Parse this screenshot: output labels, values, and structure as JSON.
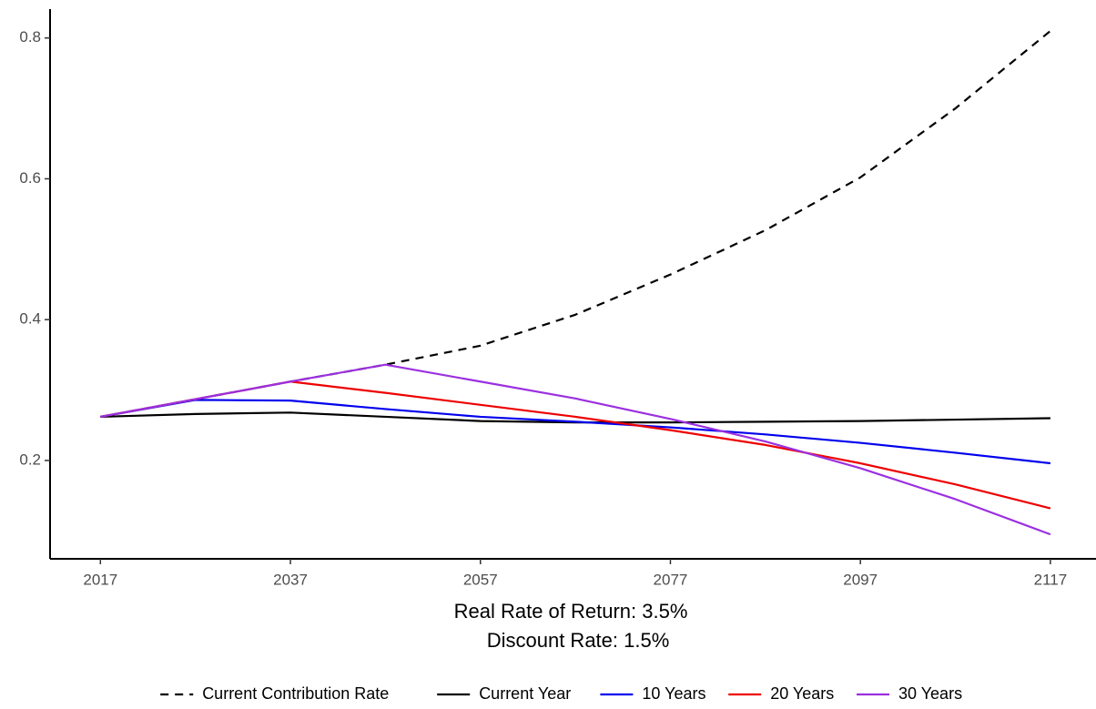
{
  "chart_data": {
    "type": "line",
    "xlabel": [
      "Real Rate of Return: 3.5%",
      "Discount Rate: 1.5%"
    ],
    "x": [
      2017,
      2027,
      2037,
      2047,
      2057,
      2067,
      2077,
      2087,
      2097,
      2107,
      2117
    ],
    "series": [
      {
        "name": "Current Contribution Rate",
        "color": "#000000",
        "dashed": true,
        "values": [
          0.262,
          0.287,
          0.312,
          0.336,
          0.363,
          0.407,
          0.464,
          0.527,
          0.602,
          0.7,
          0.81
        ]
      },
      {
        "name": "Current Year",
        "color": "#000000",
        "dashed": false,
        "values": [
          0.262,
          0.266,
          0.268,
          0.262,
          0.256,
          0.254,
          0.254,
          0.255,
          0.256,
          0.258,
          0.26
        ]
      },
      {
        "name": "10 Years",
        "color": "#0000ee",
        "dashed": false,
        "values": [
          0.262,
          0.286,
          0.285,
          0.273,
          0.262,
          0.255,
          0.247,
          0.237,
          0.225,
          0.211,
          0.196
        ]
      },
      {
        "name": "20 Years",
        "color": "#ee0000",
        "dashed": false,
        "values": [
          0.262,
          0.287,
          0.312,
          0.296,
          0.279,
          0.262,
          0.243,
          0.222,
          0.196,
          0.166,
          0.132
        ]
      },
      {
        "name": "30 Years",
        "color": "#9b30e0",
        "dashed": false,
        "values": [
          0.262,
          0.287,
          0.312,
          0.336,
          0.312,
          0.288,
          0.259,
          0.227,
          0.189,
          0.145,
          0.095
        ]
      }
    ],
    "xlim": [
      2011.7,
      2121.8
    ],
    "xticks": [
      2017,
      2037,
      2057,
      2077,
      2097,
      2117
    ],
    "ylim": [
      0.0603,
      0.841
    ],
    "yticks": [
      0.2,
      0.4,
      0.6,
      0.8
    ],
    "legend": "bottom"
  }
}
